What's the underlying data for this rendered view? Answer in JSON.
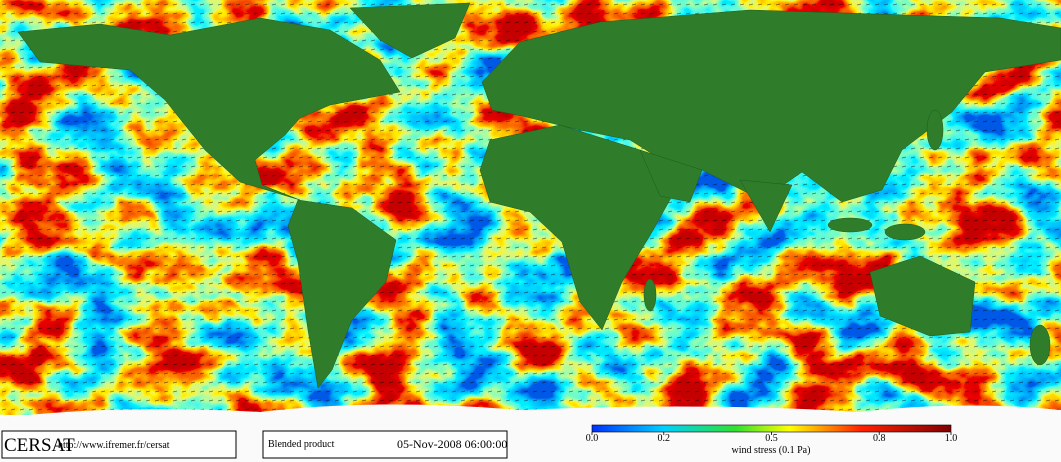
{
  "footer": {
    "logo": "CERSAT",
    "url": "http://www.ifremer.fr/cersat",
    "product": "Blended product",
    "timestamp": "05-Nov-2008 06:00:00"
  },
  "colorbar": {
    "label": "wind stress (0.1 Pa)",
    "lim": [
      0,
      1
    ],
    "ticks": [
      {
        "value": 0,
        "label": "0.0"
      },
      0.2,
      0.5,
      0.8,
      {
        "value": 1,
        "label": "1.0"
      }
    ]
  }
}
